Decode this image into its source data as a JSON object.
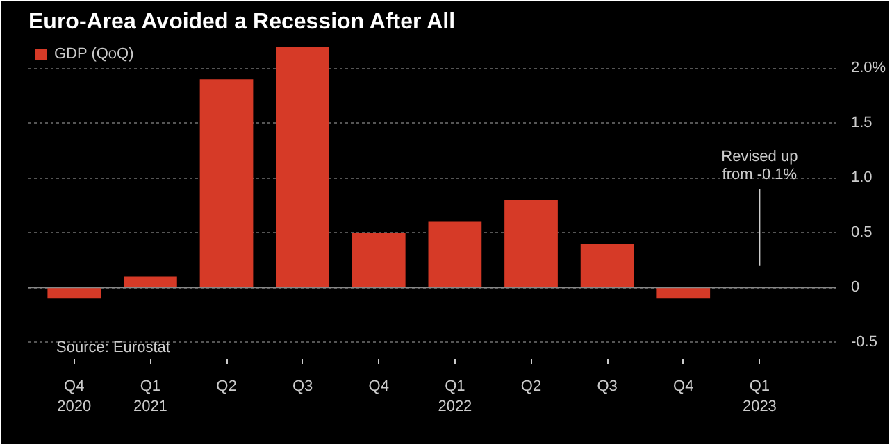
{
  "chart_data": {
    "type": "bar",
    "title": "Euro-Area Avoided a Recession After All",
    "categories": [
      "Q4\n2020",
      "Q1\n2021",
      "Q2",
      "Q3",
      "Q4",
      "Q1\n2022",
      "Q2",
      "Q3",
      "Q4",
      "Q1\n2023"
    ],
    "series": [
      {
        "name": "GDP (QoQ)",
        "color": "#d63a27",
        "values": [
          -0.1,
          0.1,
          1.9,
          2.2,
          0.5,
          0.6,
          0.8,
          0.4,
          -0.1,
          0.0
        ]
      }
    ],
    "ylim": [
      -0.65,
      2.25
    ],
    "yticks": [
      {
        "value": -0.5,
        "label": "-0.5"
      },
      0,
      0.5,
      {
        "value": 1.0,
        "label": "1.0"
      },
      1.5,
      {
        "value": 2.0,
        "label": "2.0%"
      }
    ],
    "grid": "y",
    "legend": "top left",
    "annotations": [
      "Revised up\nfrom -0.1%",
      "Source: Eurostat"
    ]
  }
}
